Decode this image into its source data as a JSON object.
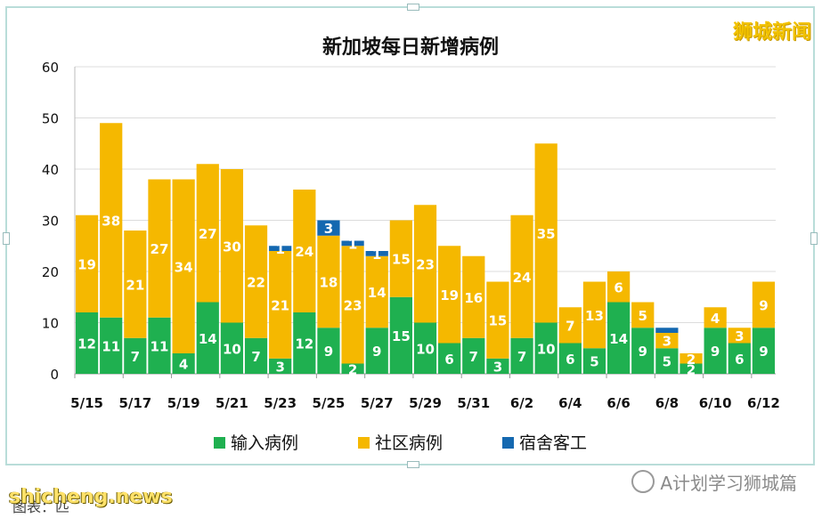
{
  "brand": "狮城新闻",
  "watermark": "A计划学习狮城篇",
  "site_watermark": "shicheng.news",
  "caption": "图表：匹",
  "chart_data": {
    "type": "bar",
    "stacked": true,
    "title": "新加坡每日新增病例",
    "ylim": [
      0,
      60
    ],
    "yticks": [
      0,
      10,
      20,
      30,
      40,
      50,
      60
    ],
    "categories": [
      "5/15",
      "5/16",
      "5/17",
      "5/18",
      "5/19",
      "5/20",
      "5/21",
      "5/22",
      "5/23",
      "5/24",
      "5/25",
      "5/26",
      "5/27",
      "5/28",
      "5/29",
      "5/30",
      "5/31",
      "6/1",
      "6/2",
      "6/3",
      "6/4",
      "6/5",
      "6/6",
      "6/7",
      "6/8",
      "6/9",
      "6/10",
      "6/11",
      "6/12"
    ],
    "tick_labels": [
      "5/15",
      "5/17",
      "5/19",
      "5/21",
      "5/23",
      "5/25",
      "5/27",
      "5/29",
      "5/31",
      "6/2",
      "6/4",
      "6/6",
      "6/8",
      "6/10",
      "6/12"
    ],
    "series": [
      {
        "name": "输入病例",
        "color": "#1fb050",
        "values": [
          12,
          11,
          7,
          11,
          4,
          14,
          10,
          7,
          3,
          12,
          9,
          2,
          9,
          15,
          10,
          6,
          7,
          3,
          7,
          10,
          6,
          5,
          14,
          9,
          5,
          2,
          9,
          6,
          9
        ]
      },
      {
        "name": "社区病例",
        "color": "#f5b800",
        "values": [
          19,
          38,
          21,
          27,
          34,
          27,
          30,
          22,
          21,
          24,
          18,
          23,
          14,
          15,
          23,
          19,
          16,
          15,
          24,
          35,
          7,
          13,
          6,
          5,
          3,
          2,
          4,
          3,
          9
        ]
      },
      {
        "name": "宿舍客工",
        "color": "#1468b0",
        "values": [
          0,
          0,
          0,
          0,
          0,
          0,
          0,
          0,
          1,
          0,
          3,
          1,
          1,
          0,
          0,
          0,
          0,
          0,
          0,
          0,
          0,
          0,
          0,
          0,
          1,
          0,
          0,
          0,
          0
        ]
      }
    ],
    "labels": [
      [
        "12",
        "11",
        "7",
        "11",
        "4",
        "14",
        "10",
        "7",
        "3",
        "12",
        "9",
        "2",
        "9",
        "15",
        "10",
        "6",
        "7",
        "3",
        "7",
        "10",
        "6",
        "5",
        "14",
        "9",
        "5",
        "2",
        "9",
        "6",
        "9"
      ],
      [
        "19",
        "38",
        "21",
        "27",
        "34",
        "27",
        "30",
        "22",
        "21",
        "24",
        "18",
        "23",
        "14",
        "15",
        "23",
        "19",
        "16",
        "15",
        "24",
        "35",
        "7",
        "13",
        "6",
        "5",
        "3",
        "2",
        "4",
        "3",
        "9"
      ],
      [
        "",
        "",
        "",
        "",
        "",
        "",
        "",
        "",
        "1",
        "",
        "3",
        "1",
        "1",
        "",
        "",
        "",
        "",
        "",
        "",
        "",
        "",
        "",
        "",
        "",
        "",
        "",
        "",
        "",
        ""
      ]
    ],
    "legend_position": "bottom",
    "grid": true
  }
}
